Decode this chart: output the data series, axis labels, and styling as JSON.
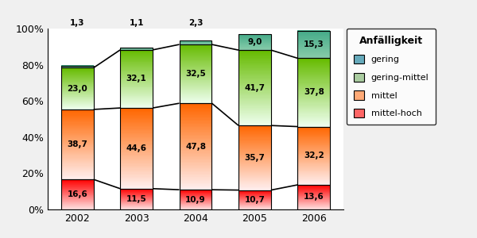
{
  "years": [
    "2002",
    "2003",
    "2004",
    "2005",
    "2006"
  ],
  "mittel_hoch": [
    16.6,
    11.5,
    10.9,
    10.7,
    13.6
  ],
  "mittel": [
    38.7,
    44.6,
    47.8,
    35.7,
    32.2
  ],
  "gering_mittel": [
    23.0,
    32.1,
    32.5,
    41.7,
    37.8
  ],
  "gering": [
    1.3,
    1.1,
    2.3,
    9.0,
    15.3
  ],
  "legend_title": "Anfälligkeit",
  "color_mittel_hoch_top": "#FF0000",
  "color_mittel_hoch_bot": "#FFE0E0",
  "color_mittel_top": "#FF6600",
  "color_mittel_bot": "#FFEEEE",
  "color_gering_mittel_top": "#66BB00",
  "color_gering_mittel_bot": "#EEFFEE",
  "color_gering_top": "#44AA88",
  "color_gering_bot": "#88CCAA",
  "bar_width": 0.55,
  "figsize": [
    6.0,
    3.0
  ],
  "dpi": 100,
  "bg_color": "#F0F0F0",
  "plot_bg": "#FFFFFF"
}
